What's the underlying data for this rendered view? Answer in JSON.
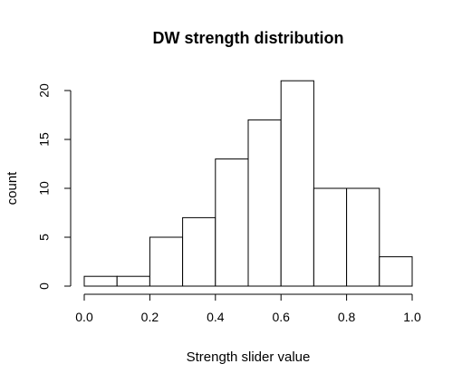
{
  "chart_data": {
    "type": "histogram",
    "title": "DW strength distribution",
    "xlabel": "Strength slider value",
    "ylabel": "count",
    "bins": [
      {
        "start": 0.0,
        "end": 0.1,
        "count": 1
      },
      {
        "start": 0.1,
        "end": 0.2,
        "count": 1
      },
      {
        "start": 0.2,
        "end": 0.3,
        "count": 5
      },
      {
        "start": 0.3,
        "end": 0.4,
        "count": 7
      },
      {
        "start": 0.4,
        "end": 0.5,
        "count": 13
      },
      {
        "start": 0.5,
        "end": 0.6,
        "count": 17
      },
      {
        "start": 0.6,
        "end": 0.7,
        "count": 21
      },
      {
        "start": 0.7,
        "end": 0.8,
        "count": 10
      },
      {
        "start": 0.8,
        "end": 0.9,
        "count": 10
      },
      {
        "start": 0.9,
        "end": 1.0,
        "count": 3
      }
    ],
    "xlim": [
      0,
      1
    ],
    "ylim": [
      0,
      21
    ],
    "x_ticks": [
      "0.0",
      "0.2",
      "0.4",
      "0.6",
      "0.8",
      "1.0"
    ],
    "y_ticks": [
      "0",
      "5",
      "10",
      "15",
      "20"
    ],
    "grid": false,
    "bar_fill": "#ffffff",
    "bar_stroke": "#000000"
  }
}
